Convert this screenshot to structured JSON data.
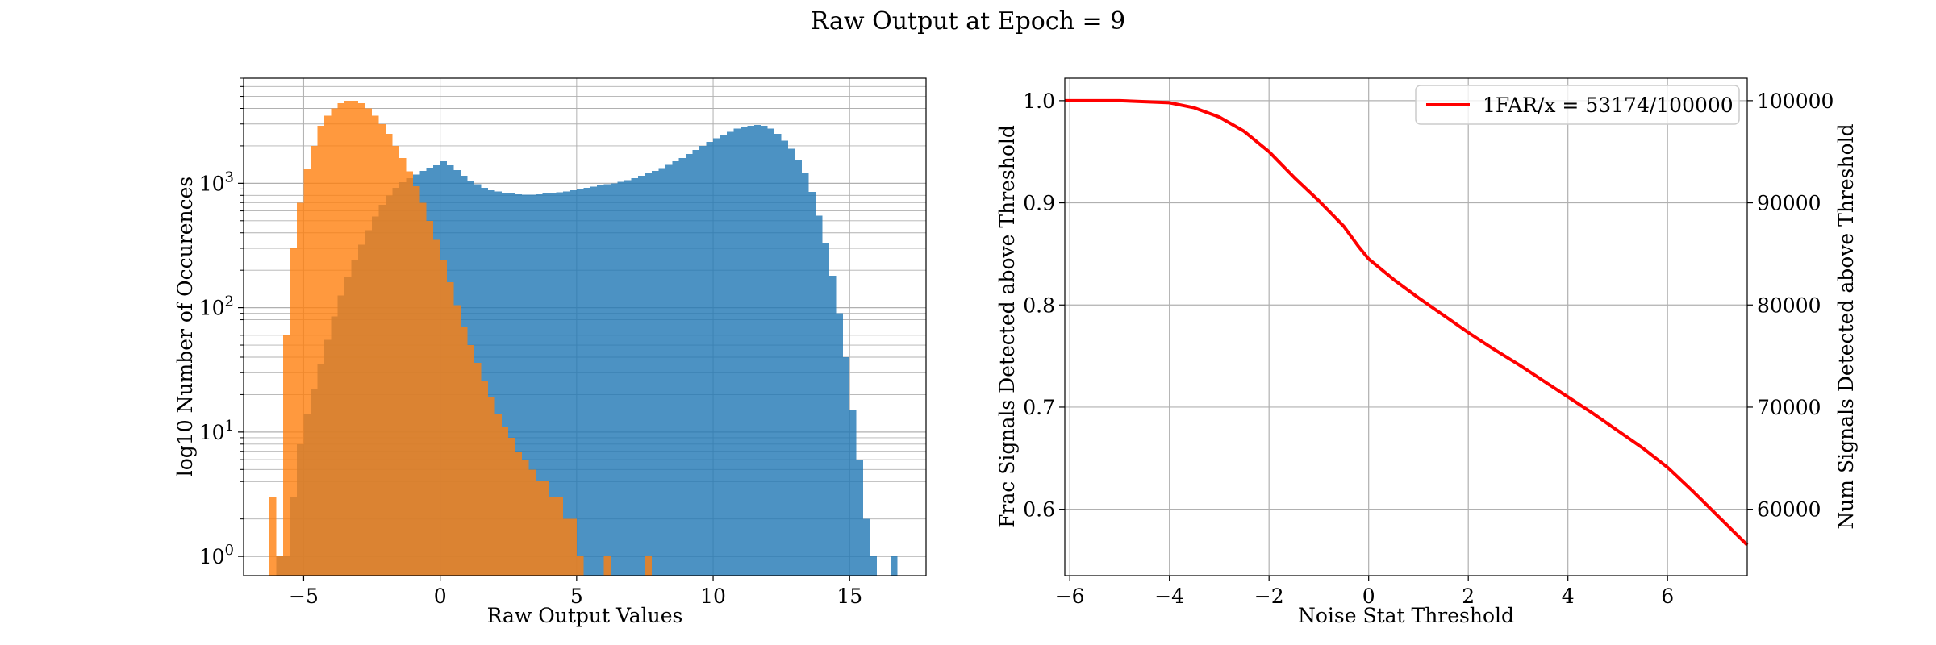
{
  "figure_title": "Raw Output at Epoch = 9",
  "chart_data": [
    {
      "type": "bar",
      "subtype": "histogram",
      "xlabel": "Raw Output Values",
      "ylabel": "log10 Number of Occurences",
      "xlim": [
        -7.2,
        17.8
      ],
      "ylim": [
        0.7,
        7000
      ],
      "yscale": "log",
      "grid": true,
      "x_ticks": [
        {
          "v": -5,
          "label": "−5"
        },
        {
          "v": 0,
          "label": "0"
        },
        {
          "v": 5,
          "label": "5"
        },
        {
          "v": 10,
          "label": "10"
        },
        {
          "v": 15,
          "label": "15"
        }
      ],
      "y_ticks": [
        {
          "v": 1,
          "base": "10",
          "exp": "0"
        },
        {
          "v": 10,
          "base": "10",
          "exp": "1"
        },
        {
          "v": 100,
          "base": "10",
          "exp": "2"
        },
        {
          "v": 1000,
          "base": "10",
          "exp": "3"
        }
      ],
      "bin_width": 0.25,
      "series": [
        {
          "color": "#1f77b4",
          "alpha": 0.8,
          "bins": [
            [
              -6.0,
              1
            ],
            [
              -5.75,
              1
            ],
            [
              -5.5,
              3
            ],
            [
              -5.25,
              8
            ],
            [
              -5.0,
              14
            ],
            [
              -4.75,
              22
            ],
            [
              -4.5,
              35
            ],
            [
              -4.25,
              55
            ],
            [
              -4.0,
              85
            ],
            [
              -3.75,
              125
            ],
            [
              -3.5,
              175
            ],
            [
              -3.25,
              240
            ],
            [
              -3.0,
              320
            ],
            [
              -2.75,
              420
            ],
            [
              -2.5,
              540
            ],
            [
              -2.25,
              670
            ],
            [
              -2.0,
              800
            ],
            [
              -1.75,
              920
            ],
            [
              -1.5,
              1020
            ],
            [
              -1.25,
              1100
            ],
            [
              -1.0,
              1180
            ],
            [
              -0.75,
              1260
            ],
            [
              -0.5,
              1340
            ],
            [
              -0.25,
              1400
            ],
            [
              0.0,
              1500
            ],
            [
              0.25,
              1400
            ],
            [
              0.5,
              1280
            ],
            [
              0.75,
              1150
            ],
            [
              1.0,
              1050
            ],
            [
              1.25,
              980
            ],
            [
              1.5,
              920
            ],
            [
              1.75,
              880
            ],
            [
              2.0,
              860
            ],
            [
              2.25,
              840
            ],
            [
              2.5,
              830
            ],
            [
              2.75,
              815
            ],
            [
              3.0,
              810
            ],
            [
              3.25,
              810
            ],
            [
              3.5,
              815
            ],
            [
              3.75,
              825
            ],
            [
              4.0,
              830
            ],
            [
              4.25,
              845
            ],
            [
              4.5,
              860
            ],
            [
              4.75,
              880
            ],
            [
              5.0,
              900
            ],
            [
              5.25,
              920
            ],
            [
              5.5,
              940
            ],
            [
              5.75,
              960
            ],
            [
              6.0,
              980
            ],
            [
              6.25,
              1000
            ],
            [
              6.5,
              1030
            ],
            [
              6.75,
              1060
            ],
            [
              7.0,
              1100
            ],
            [
              7.25,
              1150
            ],
            [
              7.5,
              1200
            ],
            [
              7.75,
              1260
            ],
            [
              8.0,
              1330
            ],
            [
              8.25,
              1410
            ],
            [
              8.5,
              1500
            ],
            [
              8.75,
              1600
            ],
            [
              9.0,
              1720
            ],
            [
              9.25,
              1850
            ],
            [
              9.5,
              2000
            ],
            [
              9.75,
              2150
            ],
            [
              10.0,
              2300
            ],
            [
              10.25,
              2450
            ],
            [
              10.5,
              2600
            ],
            [
              10.75,
              2750
            ],
            [
              11.0,
              2850
            ],
            [
              11.25,
              2900
            ],
            [
              11.5,
              2950
            ],
            [
              11.75,
              2900
            ],
            [
              12.0,
              2750
            ],
            [
              12.25,
              2500
            ],
            [
              12.5,
              2200
            ],
            [
              12.75,
              1900
            ],
            [
              13.0,
              1550
            ],
            [
              13.25,
              1200
            ],
            [
              13.5,
              850
            ],
            [
              13.75,
              550
            ],
            [
              14.0,
              330
            ],
            [
              14.25,
              180
            ],
            [
              14.5,
              90
            ],
            [
              14.75,
              40
            ],
            [
              15.0,
              15
            ],
            [
              15.25,
              6
            ],
            [
              15.5,
              2
            ],
            [
              15.75,
              1
            ],
            [
              16.5,
              1
            ]
          ]
        },
        {
          "color": "#ff7f0e",
          "alpha": 0.8,
          "bins": [
            [
              -6.25,
              3
            ],
            [
              -6.0,
              1
            ],
            [
              -5.75,
              60
            ],
            [
              -5.5,
              300
            ],
            [
              -5.25,
              700
            ],
            [
              -5.0,
              1300
            ],
            [
              -4.75,
              2000
            ],
            [
              -4.5,
              2900
            ],
            [
              -4.25,
              3500
            ],
            [
              -4.0,
              4000
            ],
            [
              -3.75,
              4400
            ],
            [
              -3.5,
              4600
            ],
            [
              -3.25,
              4600
            ],
            [
              -3.0,
              4400
            ],
            [
              -2.75,
              4000
            ],
            [
              -2.5,
              3500
            ],
            [
              -2.25,
              3000
            ],
            [
              -2.0,
              2500
            ],
            [
              -1.75,
              2000
            ],
            [
              -1.5,
              1600
            ],
            [
              -1.25,
              1250
            ],
            [
              -1.0,
              950
            ],
            [
              -0.75,
              700
            ],
            [
              -0.5,
              500
            ],
            [
              -0.25,
              350
            ],
            [
              0.0,
              240
            ],
            [
              0.25,
              160
            ],
            [
              0.5,
              105
            ],
            [
              0.75,
              70
            ],
            [
              1.0,
              50
            ],
            [
              1.25,
              36
            ],
            [
              1.5,
              26
            ],
            [
              1.75,
              19
            ],
            [
              2.0,
              14
            ],
            [
              2.25,
              11
            ],
            [
              2.5,
              9
            ],
            [
              2.75,
              7
            ],
            [
              3.0,
              6
            ],
            [
              3.25,
              5
            ],
            [
              3.5,
              4
            ],
            [
              3.75,
              4
            ],
            [
              4.0,
              3
            ],
            [
              4.25,
              3
            ],
            [
              4.5,
              2
            ],
            [
              4.75,
              2
            ],
            [
              5.0,
              1
            ],
            [
              6.0,
              1
            ],
            [
              7.5,
              1
            ]
          ]
        }
      ]
    },
    {
      "type": "line",
      "xlabel": "Noise Stat Threshold",
      "ylabel": "Frac Signals Detected above Threshold",
      "ylabel_right": "Num Signals Detected above Threshold",
      "xlim": [
        -6.1,
        7.6
      ],
      "ylim": [
        0.535,
        1.022
      ],
      "ylim_right": [
        53500,
        102200
      ],
      "grid": true,
      "legend_position": "top-right",
      "x_ticks": [
        {
          "v": -6,
          "label": "−6"
        },
        {
          "v": -4,
          "label": "−4"
        },
        {
          "v": -2,
          "label": "−2"
        },
        {
          "v": 0,
          "label": "0"
        },
        {
          "v": 2,
          "label": "2"
        },
        {
          "v": 4,
          "label": "4"
        },
        {
          "v": 6,
          "label": "6"
        }
      ],
      "y_ticks": [
        {
          "v": 0.6,
          "label": "0.6"
        },
        {
          "v": 0.7,
          "label": "0.7"
        },
        {
          "v": 0.8,
          "label": "0.8"
        },
        {
          "v": 0.9,
          "label": "0.9"
        },
        {
          "v": 1.0,
          "label": "1.0"
        }
      ],
      "y_ticks_right": [
        {
          "v": 60000,
          "label": "60000"
        },
        {
          "v": 70000,
          "label": "70000"
        },
        {
          "v": 80000,
          "label": "80000"
        },
        {
          "v": 90000,
          "label": "90000"
        },
        {
          "v": 100000,
          "label": "100000"
        }
      ],
      "series": [
        {
          "name": "1FAR/x = 53174/100000",
          "color": "#ff0000",
          "points": [
            [
              -6.1,
              1.0
            ],
            [
              -5.0,
              1.0
            ],
            [
              -4.5,
              0.999
            ],
            [
              -4.0,
              0.998
            ],
            [
              -3.5,
              0.993
            ],
            [
              -3.0,
              0.984
            ],
            [
              -2.5,
              0.97
            ],
            [
              -2.0,
              0.95
            ],
            [
              -1.5,
              0.925
            ],
            [
              -1.0,
              0.902
            ],
            [
              -0.5,
              0.877
            ],
            [
              -0.2,
              0.857
            ],
            [
              0.0,
              0.845
            ],
            [
              0.5,
              0.825
            ],
            [
              1.0,
              0.807
            ],
            [
              1.5,
              0.79
            ],
            [
              2.0,
              0.773
            ],
            [
              2.5,
              0.757
            ],
            [
              3.0,
              0.742
            ],
            [
              3.5,
              0.726
            ],
            [
              4.0,
              0.71
            ],
            [
              4.5,
              0.694
            ],
            [
              5.0,
              0.677
            ],
            [
              5.5,
              0.66
            ],
            [
              6.0,
              0.641
            ],
            [
              6.5,
              0.618
            ],
            [
              7.0,
              0.594
            ],
            [
              7.6,
              0.565
            ]
          ]
        }
      ]
    }
  ]
}
